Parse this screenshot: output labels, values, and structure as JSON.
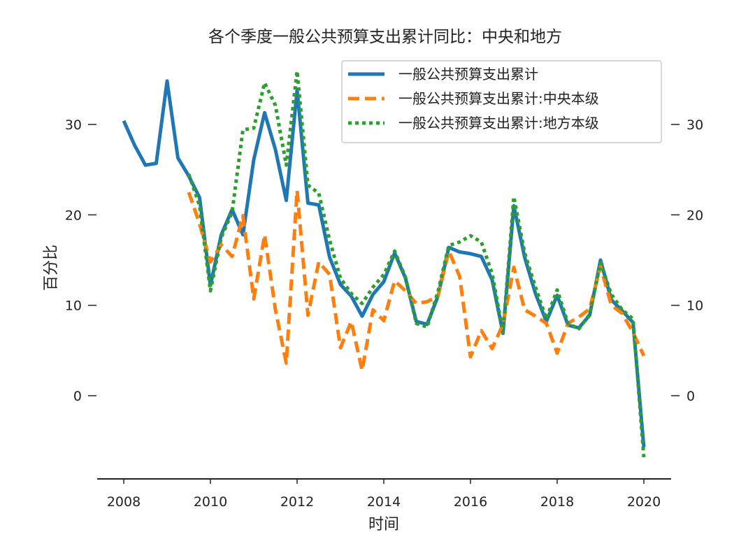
{
  "chart_data": {
    "type": "line",
    "title": "各个季度一般公共预算支出累计同比：中央和地方",
    "xlabel": "时间",
    "ylabel": "百分比",
    "xlim": [
      2007.5,
      2020.6
    ],
    "ylim": [
      -9,
      37
    ],
    "xticks": [
      2008,
      2010,
      2012,
      2014,
      2016,
      2018,
      2020
    ],
    "xtick_labels": [
      "2008",
      "2010",
      "2012",
      "2014",
      "2016",
      "2018",
      "2020"
    ],
    "yticks": [
      0,
      10,
      20,
      30
    ],
    "ytick_labels": [
      "0",
      "10",
      "20",
      "30"
    ],
    "right_axis": true,
    "grid": false,
    "legend_position": "top-right",
    "series": [
      {
        "name": "一般公共预算支出累计",
        "color": "#1f77b4",
        "style": "solid",
        "x": [
          2008.0,
          2008.25,
          2008.5,
          2008.75,
          2009.0,
          2009.25,
          2009.5,
          2009.75,
          2010.0,
          2010.25,
          2010.5,
          2010.75,
          2011.0,
          2011.25,
          2011.5,
          2011.75,
          2012.0,
          2012.25,
          2012.5,
          2012.75,
          2013.0,
          2013.25,
          2013.5,
          2013.75,
          2014.0,
          2014.25,
          2014.5,
          2014.75,
          2015.0,
          2015.25,
          2015.5,
          2015.75,
          2016.0,
          2016.25,
          2016.5,
          2016.75,
          2017.0,
          2017.25,
          2017.5,
          2017.75,
          2018.0,
          2018.25,
          2018.5,
          2018.75,
          2019.0,
          2019.25,
          2019.5,
          2019.75,
          2020.0
        ],
        "y": [
          30.4,
          27.7,
          25.5,
          25.7,
          34.8,
          26.3,
          24.3,
          21.9,
          12.2,
          17.8,
          20.6,
          17.8,
          26.1,
          31.3,
          27.2,
          21.6,
          33.8,
          21.3,
          21.1,
          15.3,
          12.3,
          11.0,
          8.8,
          11.2,
          12.6,
          15.8,
          13.0,
          8.2,
          7.9,
          11.0,
          16.4,
          15.9,
          15.7,
          15.4,
          12.8,
          6.9,
          21.0,
          15.3,
          11.3,
          8.2,
          11.1,
          7.8,
          7.5,
          8.9,
          15.0,
          10.6,
          9.4,
          8.1,
          -5.7
        ]
      },
      {
        "name": "一般公共预算支出累计:中央本级",
        "color": "#ff7f0e",
        "style": "dashed",
        "x": [
          2009.5,
          2009.75,
          2010.0,
          2010.25,
          2010.5,
          2010.75,
          2011.0,
          2011.25,
          2011.5,
          2011.75,
          2012.0,
          2012.25,
          2012.5,
          2012.75,
          2013.0,
          2013.25,
          2013.5,
          2013.75,
          2014.0,
          2014.25,
          2014.5,
          2014.75,
          2015.0,
          2015.25,
          2015.5,
          2015.75,
          2016.0,
          2016.25,
          2016.5,
          2016.75,
          2017.0,
          2017.25,
          2017.5,
          2017.75,
          2018.0,
          2018.25,
          2018.5,
          2018.75,
          2019.0,
          2019.25,
          2019.5,
          2019.75,
          2020.0
        ],
        "y": [
          22.5,
          19.0,
          14.8,
          16.7,
          15.4,
          19.9,
          10.7,
          17.8,
          9.5,
          3.6,
          22.7,
          8.9,
          14.8,
          13.4,
          5.3,
          8.2,
          2.8,
          9.5,
          8.3,
          12.7,
          11.6,
          10.2,
          10.4,
          11.0,
          16.0,
          13.2,
          4.3,
          7.2,
          5.2,
          7.9,
          14.2,
          9.5,
          8.8,
          8.0,
          4.7,
          8.0,
          8.7,
          9.6,
          14.3,
          10.0,
          9.1,
          7.0,
          4.4
        ]
      },
      {
        "name": "一般公共预算支出累计:地方本级",
        "color": "#2ca02c",
        "style": "dotted",
        "x": [
          2009.5,
          2009.75,
          2010.0,
          2010.25,
          2010.5,
          2010.75,
          2011.0,
          2011.25,
          2011.5,
          2011.75,
          2012.0,
          2012.25,
          2012.5,
          2012.75,
          2013.0,
          2013.25,
          2013.5,
          2013.75,
          2014.0,
          2014.25,
          2014.5,
          2014.75,
          2015.0,
          2015.25,
          2015.5,
          2015.75,
          2016.0,
          2016.25,
          2016.5,
          2016.75,
          2017.0,
          2017.25,
          2017.5,
          2017.75,
          2018.0,
          2018.25,
          2018.5,
          2018.75,
          2019.0,
          2019.25,
          2019.5,
          2019.75,
          2020.0
        ],
        "y": [
          24.5,
          21.0,
          11.6,
          17.5,
          20.3,
          29.4,
          29.6,
          34.6,
          32.1,
          25.5,
          35.9,
          23.3,
          22.4,
          17.2,
          13.0,
          11.3,
          10.2,
          12.0,
          13.4,
          16.0,
          13.1,
          8.0,
          7.6,
          11.5,
          16.6,
          17.0,
          17.7,
          17.0,
          13.5,
          7.0,
          22.0,
          15.8,
          12.0,
          8.5,
          11.7,
          8.0,
          7.4,
          9.0,
          14.7,
          11.2,
          9.5,
          8.5,
          -6.8
        ]
      }
    ]
  }
}
